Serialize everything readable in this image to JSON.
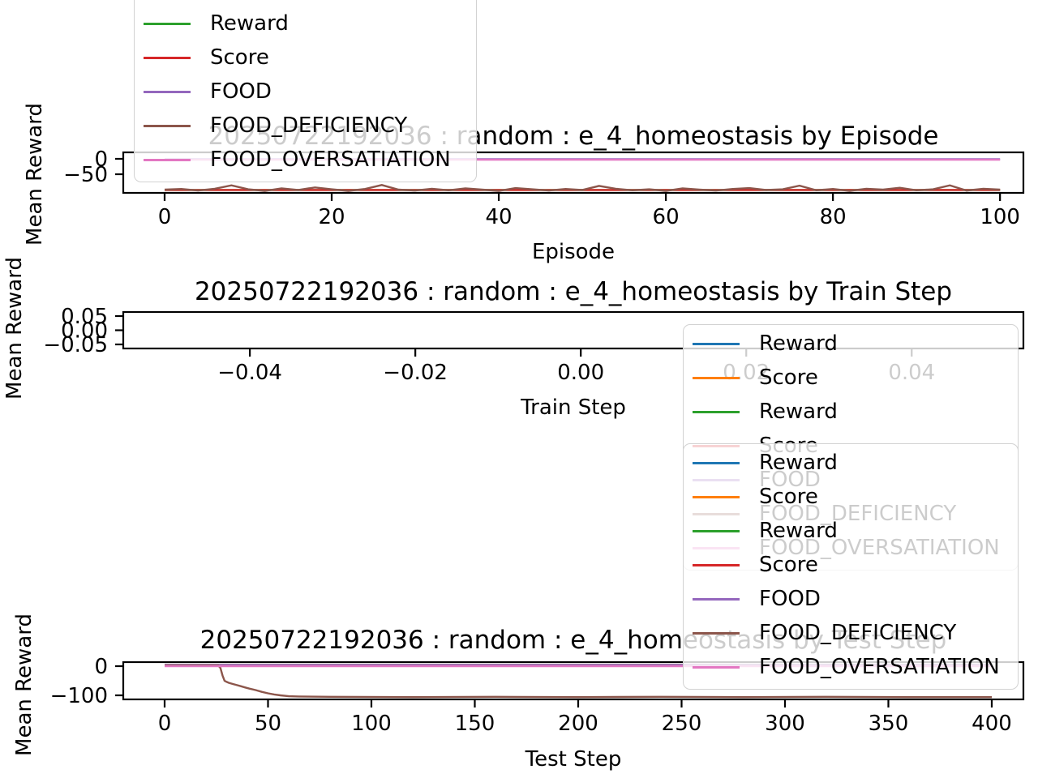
{
  "figure": {
    "background": "#ffffff",
    "text_color": "#000000",
    "legend_border_color": "#d2d2d2",
    "legend_background": "rgba(255,255,255,0.8)"
  },
  "chart_data": [
    {
      "type": "line",
      "title": "20250722192036 : random : e_4_homeostasis by Episode",
      "xlabel": "Episode",
      "ylabel": "Mean Reward",
      "xticks": [
        "0",
        "20",
        "40",
        "60",
        "80",
        "100"
      ],
      "xtick_vals": [
        0,
        20,
        40,
        60,
        80,
        100
      ],
      "yticks": [
        "0",
        "−50"
      ],
      "ytick_vals": [
        0,
        -50
      ],
      "xlim": [
        -4.95,
        102.8
      ],
      "ylim": [
        -110.5,
        21
      ],
      "grid": false,
      "legend_position": "upper left, clipped at top of figure",
      "legend_entries": [
        {
          "label": "Reward",
          "color": "#2ca02c"
        },
        {
          "label": "Score",
          "color": "#d62728"
        },
        {
          "label": "FOOD",
          "color": "#9467bd"
        },
        {
          "label": "FOOD_DEFICIENCY",
          "color": "#8c564b"
        },
        {
          "label": "FOOD_OVERSATIATION",
          "color": "#e377c2"
        }
      ],
      "series": [
        {
          "name": "Reward",
          "color": "#2ca02c",
          "points": [
            [
              0,
              -101
            ],
            [
              100,
              -101
            ]
          ]
        },
        {
          "name": "Score",
          "color": "#d62728",
          "points": [
            [
              0,
              -101
            ],
            [
              100,
              -101
            ]
          ]
        },
        {
          "name": "FOOD",
          "color": "#9467bd",
          "points": [
            [
              0,
              -1
            ],
            [
              100,
              -1
            ]
          ]
        },
        {
          "name": "FOOD_DEFICIENCY",
          "color": "#8c564b",
          "points": [
            [
              0,
              -100
            ],
            [
              2,
              -98
            ],
            [
              4,
              -103
            ],
            [
              6,
              -97
            ],
            [
              8,
              -86
            ],
            [
              10,
              -99
            ],
            [
              12,
              -104
            ],
            [
              14,
              -96
            ],
            [
              16,
              -101
            ],
            [
              18,
              -93
            ],
            [
              20,
              -99
            ],
            [
              22,
              -104
            ],
            [
              24,
              -98
            ],
            [
              26,
              -85
            ],
            [
              28,
              -100
            ],
            [
              30,
              -103
            ],
            [
              32,
              -97
            ],
            [
              34,
              -102
            ],
            [
              36,
              -96
            ],
            [
              38,
              -100
            ],
            [
              40,
              -104
            ],
            [
              42,
              -95
            ],
            [
              44,
              -99
            ],
            [
              46,
              -103
            ],
            [
              48,
              -98
            ],
            [
              50,
              -101
            ],
            [
              52,
              -88
            ],
            [
              54,
              -97
            ],
            [
              56,
              -102
            ],
            [
              58,
              -99
            ],
            [
              60,
              -104
            ],
            [
              62,
              -96
            ],
            [
              64,
              -100
            ],
            [
              66,
              -103
            ],
            [
              68,
              -98
            ],
            [
              70,
              -95
            ],
            [
              72,
              -101
            ],
            [
              74,
              -99
            ],
            [
              76,
              -87
            ],
            [
              78,
              -102
            ],
            [
              80,
              -98
            ],
            [
              82,
              -104
            ],
            [
              84,
              -97
            ],
            [
              86,
              -100
            ],
            [
              88,
              -94
            ],
            [
              90,
              -102
            ],
            [
              92,
              -99
            ],
            [
              94,
              -86
            ],
            [
              96,
              -103
            ],
            [
              98,
              -97
            ],
            [
              100,
              -100
            ]
          ]
        },
        {
          "name": "FOOD_OVERSATIATION",
          "color": "#e377c2",
          "points": [
            [
              0,
              -3
            ],
            [
              100,
              -3
            ]
          ]
        }
      ]
    },
    {
      "type": "line",
      "title": "20250722192036 : random : e_4_homeostasis by Train Step",
      "xlabel": "Train Step",
      "ylabel": "Mean Reward",
      "xticks": [
        "−0.04",
        "−0.02",
        "0.00",
        "0.02",
        "0.04"
      ],
      "xtick_vals": [
        -0.04,
        -0.02,
        0,
        0.02,
        0.04
      ],
      "yticks": [
        "0.05",
        "0.00",
        "−0.05"
      ],
      "ytick_vals": [
        0.05,
        0,
        -0.05
      ],
      "xlim": [
        -0.0553,
        0.0535
      ],
      "ylim": [
        -0.0643,
        0.0643
      ],
      "grid": false,
      "legend_position": "right, below axes, overlapping test-step legend",
      "legend_entries": [
        {
          "label": "Reward",
          "color": "#1f77b4"
        },
        {
          "label": "Score",
          "color": "#ff7f0e"
        },
        {
          "label": "Reward",
          "color": "#2ca02c"
        },
        {
          "label": "Score",
          "color": "#d62728"
        },
        {
          "label": "FOOD",
          "color": "#9467bd"
        },
        {
          "label": "FOOD_DEFICIENCY",
          "color": "#8c564b"
        },
        {
          "label": "FOOD_OVERSATIATION",
          "color": "#e377c2"
        }
      ],
      "series": []
    },
    {
      "type": "line",
      "title": "20250722192036 : random : e_4_homeostasis by Test Step",
      "xlabel": "Test Step",
      "ylabel": "Mean Reward",
      "xticks": [
        "0",
        "50",
        "100",
        "150",
        "200",
        "250",
        "300",
        "350",
        "400"
      ],
      "xtick_vals": [
        0,
        50,
        100,
        150,
        200,
        250,
        300,
        350,
        400
      ],
      "yticks": [
        "0",
        "−100"
      ],
      "ytick_vals": [
        0,
        -100
      ],
      "xlim": [
        -20,
        415.3
      ],
      "ylim": [
        -113.9,
        13.9
      ],
      "grid": false,
      "legend_position": "upper right, overlapping plot corner",
      "legend_entries": [
        {
          "label": "Reward",
          "color": "#1f77b4"
        },
        {
          "label": "Score",
          "color": "#ff7f0e"
        },
        {
          "label": "Reward",
          "color": "#2ca02c"
        },
        {
          "label": "Score",
          "color": "#d62728"
        },
        {
          "label": "FOOD",
          "color": "#9467bd"
        },
        {
          "label": "FOOD_DEFICIENCY",
          "color": "#8c564b"
        },
        {
          "label": "FOOD_OVERSATIATION",
          "color": "#e377c2"
        }
      ],
      "series": [
        {
          "name": "Reward",
          "color": "#1f77b4",
          "points": [
            [
              0,
              4
            ],
            [
              400,
              4
            ]
          ]
        },
        {
          "name": "Score",
          "color": "#ff7f0e",
          "points": [
            [
              0,
              4
            ],
            [
              400,
              4
            ]
          ]
        },
        {
          "name": "Reward",
          "color": "#2ca02c",
          "points": [
            [
              0,
              4
            ],
            [
              400,
              4
            ]
          ]
        },
        {
          "name": "Score",
          "color": "#d62728",
          "points": [
            [
              0,
              4
            ],
            [
              400,
              4
            ]
          ]
        },
        {
          "name": "FOOD",
          "color": "#9467bd",
          "points": [
            [
              0,
              4
            ],
            [
              400,
              4
            ]
          ]
        },
        {
          "name": "FOOD_DEFICIENCY",
          "color": "#8c564b",
          "points": [
            [
              0,
              2
            ],
            [
              10,
              2
            ],
            [
              20,
              2
            ],
            [
              26,
              2
            ],
            [
              27,
              -6
            ],
            [
              28,
              -32
            ],
            [
              29,
              -50
            ],
            [
              30,
              -54
            ],
            [
              31,
              -57
            ],
            [
              33,
              -61
            ],
            [
              35,
              -65
            ],
            [
              37,
              -69
            ],
            [
              39,
              -73
            ],
            [
              41,
              -77
            ],
            [
              44,
              -82
            ],
            [
              47,
              -88
            ],
            [
              50,
              -93
            ],
            [
              53,
              -97
            ],
            [
              56,
              -100
            ],
            [
              60,
              -103
            ],
            [
              65,
              -104
            ],
            [
              80,
              -105
            ],
            [
              120,
              -106
            ],
            [
              160,
              -105
            ],
            [
              200,
              -106
            ],
            [
              240,
              -105
            ],
            [
              280,
              -106
            ],
            [
              320,
              -105
            ],
            [
              360,
              -106
            ],
            [
              400,
              -106
            ]
          ]
        },
        {
          "name": "FOOD_OVERSATIATION",
          "color": "#e377c2",
          "points": [
            [
              0,
              0
            ],
            [
              400,
              0
            ]
          ]
        }
      ]
    }
  ]
}
